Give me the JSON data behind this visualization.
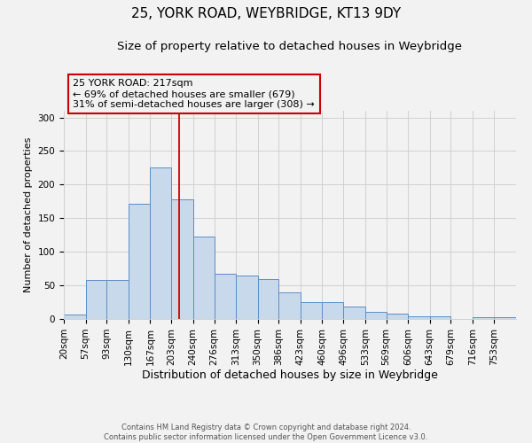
{
  "title": "25, YORK ROAD, WEYBRIDGE, KT13 9DY",
  "subtitle": "Size of property relative to detached houses in Weybridge",
  "xlabel": "Distribution of detached houses by size in Weybridge",
  "ylabel": "Number of detached properties",
  "bin_edges": [
    20,
    57,
    93,
    130,
    167,
    203,
    240,
    276,
    313,
    350,
    386,
    423,
    460,
    496,
    533,
    569,
    606,
    643,
    679,
    716,
    753,
    790
  ],
  "bar_heights": [
    7,
    58,
    58,
    172,
    225,
    178,
    123,
    67,
    65,
    60,
    40,
    25,
    25,
    19,
    10,
    8,
    4,
    4,
    0,
    2,
    2
  ],
  "bar_facecolor": "#c9d9ec",
  "bar_edgecolor": "#5b8ec4",
  "ylim": [
    0,
    310
  ],
  "yticks": [
    0,
    50,
    100,
    150,
    200,
    250,
    300
  ],
  "vline_x": 217,
  "vline_color": "#cc0000",
  "annotation_text": "25 YORK ROAD: 217sqm\n← 69% of detached houses are smaller (679)\n31% of semi-detached houses are larger (308) →",
  "annotation_box_color": "#cc0000",
  "grid_color": "#d0d0d0",
  "background_color": "#f2f2f2",
  "footer_line1": "Contains HM Land Registry data © Crown copyright and database right 2024.",
  "footer_line2": "Contains public sector information licensed under the Open Government Licence v3.0.",
  "title_fontsize": 11,
  "subtitle_fontsize": 9.5,
  "xlabel_fontsize": 9,
  "ylabel_fontsize": 8,
  "tick_label_fontsize": 7.5,
  "annotation_fontsize": 8,
  "footer_fontsize": 6,
  "xtick_labels": [
    "20sqm",
    "57sqm",
    "93sqm",
    "130sqm",
    "167sqm",
    "203sqm",
    "240sqm",
    "276sqm",
    "313sqm",
    "350sqm",
    "386sqm",
    "423sqm",
    "460sqm",
    "496sqm",
    "533sqm",
    "569sqm",
    "606sqm",
    "643sqm",
    "679sqm",
    "716sqm",
    "753sqm"
  ]
}
